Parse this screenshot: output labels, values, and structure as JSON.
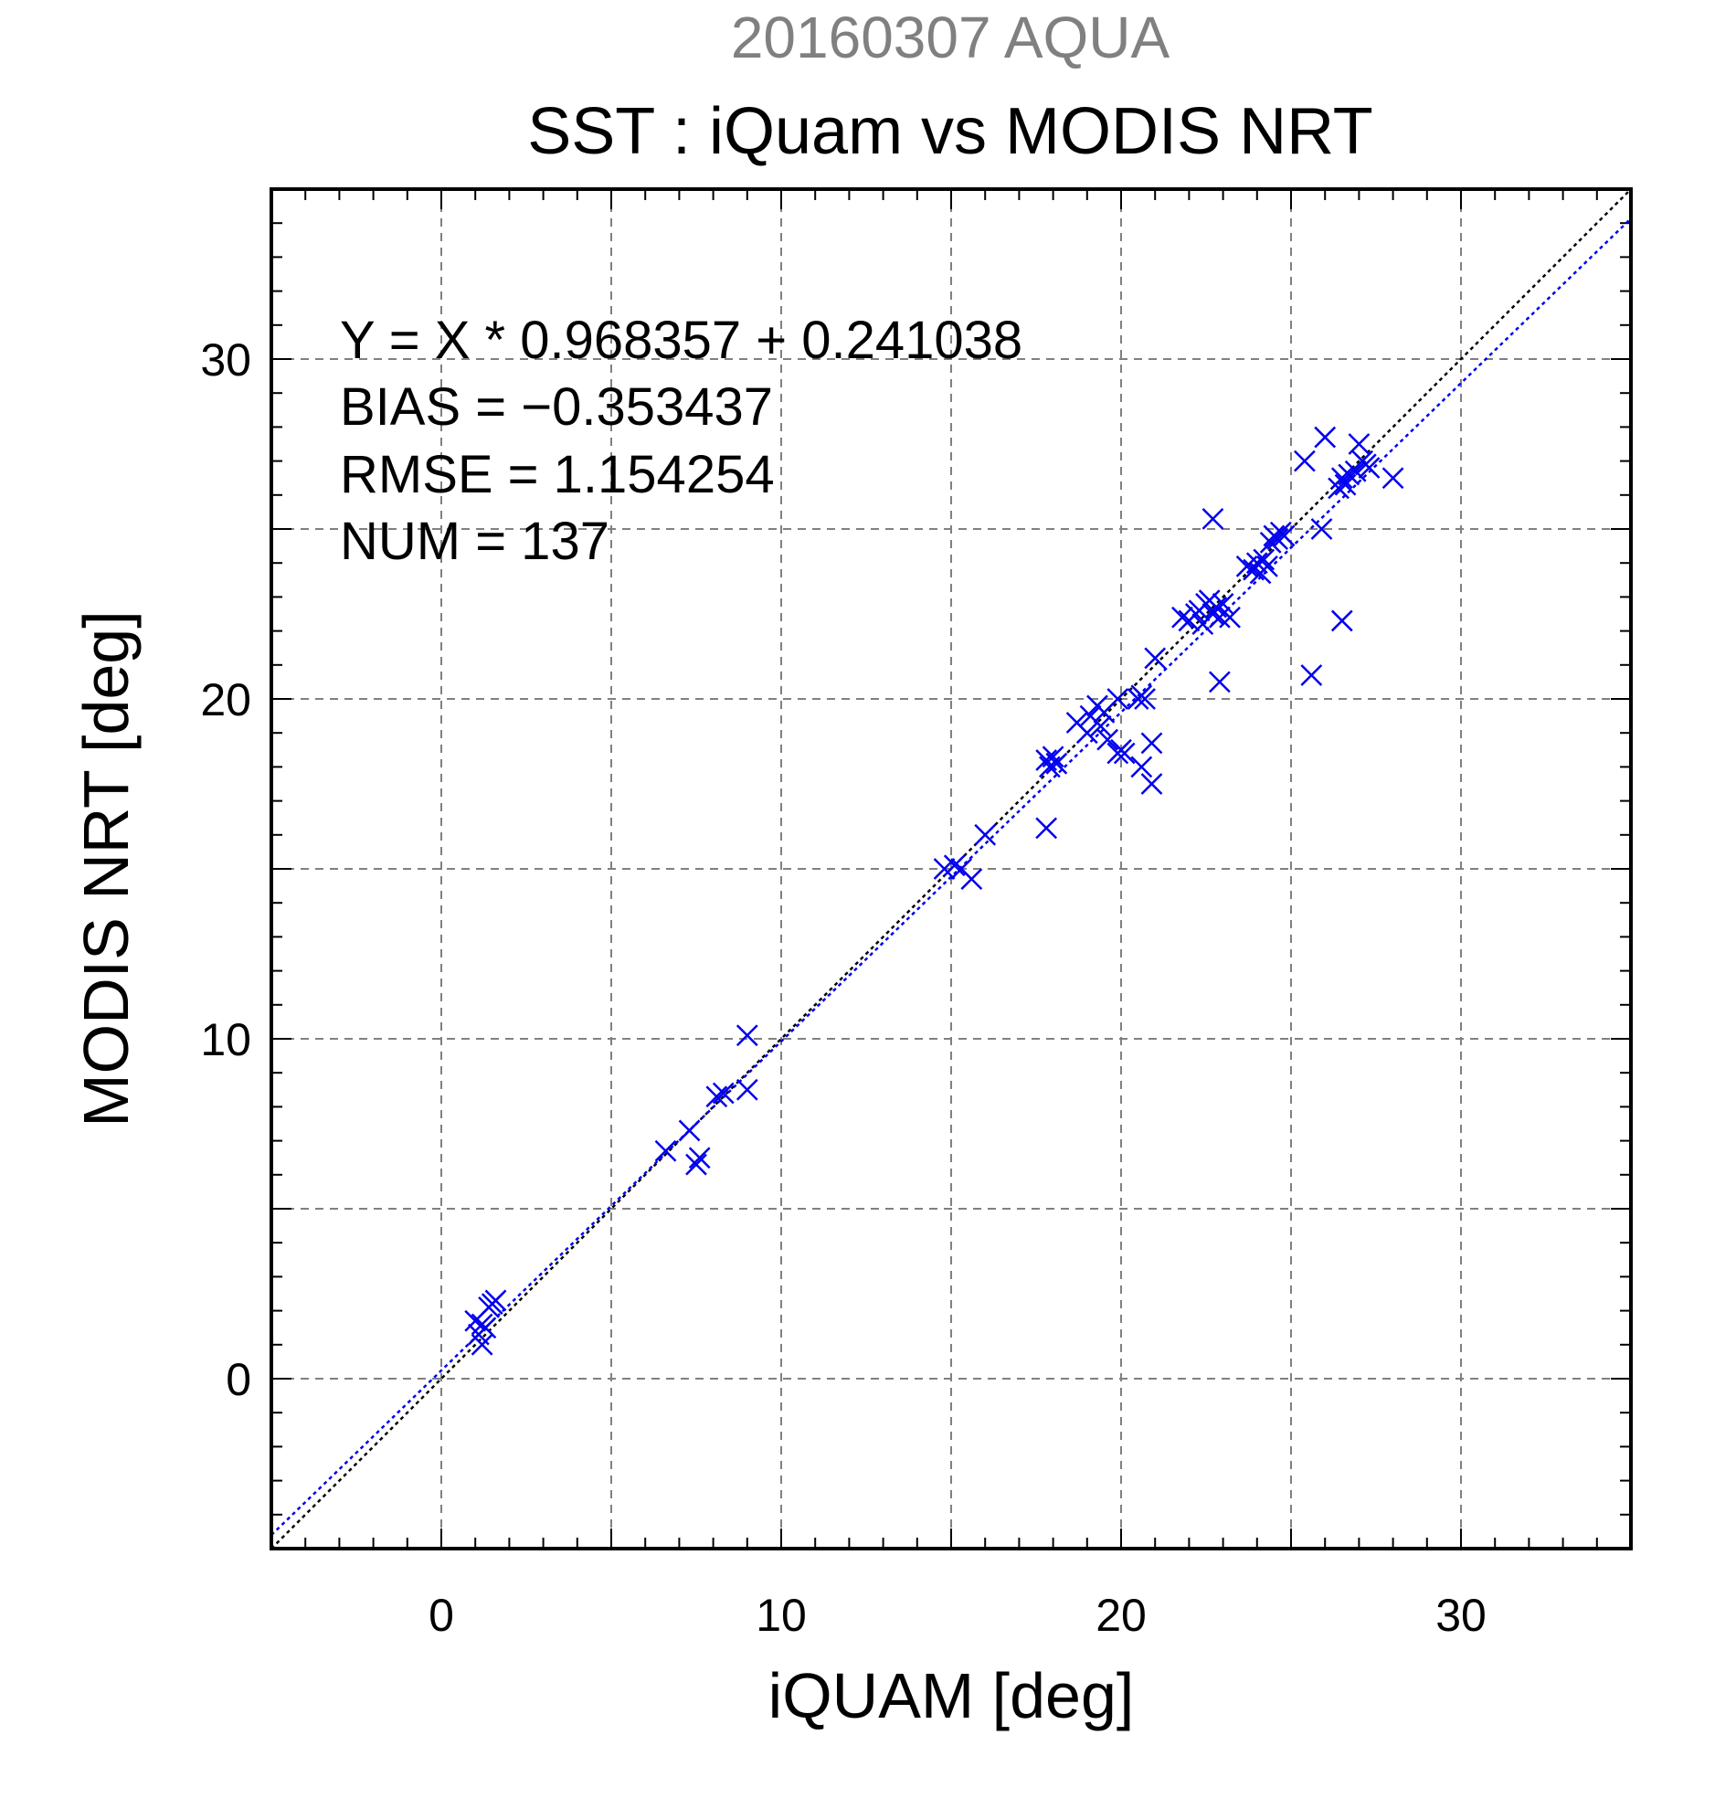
{
  "chart_data": {
    "type": "scatter",
    "title": "SST : iQuam vs MODIS NRT",
    "subtitle": "20160307 AQUA",
    "xlabel": "iQUAM [deg]",
    "ylabel": "MODIS NRT [deg]",
    "xlim": [
      -5,
      35
    ],
    "ylim": [
      -5,
      35
    ],
    "x_ticks": [
      0,
      10,
      20,
      30
    ],
    "y_ticks": [
      0,
      10,
      20,
      30
    ],
    "x_tick_labels": [
      "0",
      "10",
      "20",
      "30"
    ],
    "y_tick_labels": [
      "0",
      "10",
      "20",
      "30"
    ],
    "grid_step": 5,
    "grid": true,
    "marker": "x",
    "colors": {
      "points": "#0000ee",
      "fit_line": "#0000ee",
      "identity_line": "#000000",
      "subtitle": "#808080",
      "grid": "#808080"
    },
    "fit": {
      "slope": 0.968357,
      "intercept": 0.241038
    },
    "stats": [
      "Y = X * 0.968357 + 0.241038",
      "BIAS = −0.353437",
      "RMSE = 1.154254",
      "NUM = 137"
    ],
    "points": [
      [
        1.0,
        1.7
      ],
      [
        1.1,
        1.3
      ],
      [
        1.2,
        1.0
      ],
      [
        1.3,
        1.5
      ],
      [
        1.4,
        2.1
      ],
      [
        1.5,
        2.2
      ],
      [
        1.6,
        2.3
      ],
      [
        1.2,
        1.6
      ],
      [
        6.6,
        6.7
      ],
      [
        7.3,
        7.3
      ],
      [
        7.5,
        6.3
      ],
      [
        7.6,
        6.5
      ],
      [
        8.1,
        8.3
      ],
      [
        8.3,
        8.4
      ],
      [
        9.0,
        10.1
      ],
      [
        9.0,
        8.5
      ],
      [
        14.8,
        15.0
      ],
      [
        15.1,
        15.1
      ],
      [
        15.3,
        15.0
      ],
      [
        15.6,
        14.7
      ],
      [
        16.0,
        16.0
      ],
      [
        17.8,
        18.2
      ],
      [
        17.9,
        18.0
      ],
      [
        18.0,
        18.3
      ],
      [
        18.1,
        18.1
      ],
      [
        17.8,
        16.2
      ],
      [
        18.7,
        19.3
      ],
      [
        19.0,
        19.0
      ],
      [
        19.1,
        19.5
      ],
      [
        19.3,
        19.8
      ],
      [
        19.4,
        19.2
      ],
      [
        19.5,
        19.6
      ],
      [
        19.6,
        18.8
      ],
      [
        19.9,
        20.0
      ],
      [
        19.9,
        18.4
      ],
      [
        20.0,
        18.5
      ],
      [
        20.1,
        18.4
      ],
      [
        20.5,
        20.0
      ],
      [
        20.6,
        20.1
      ],
      [
        20.7,
        20.0
      ],
      [
        20.6,
        18.0
      ],
      [
        20.9,
        17.5
      ],
      [
        20.9,
        18.7
      ],
      [
        21.0,
        21.2
      ],
      [
        21.8,
        22.4
      ],
      [
        22.0,
        22.3
      ],
      [
        22.2,
        22.5
      ],
      [
        22.3,
        22.6
      ],
      [
        22.4,
        22.2
      ],
      [
        22.5,
        22.8
      ],
      [
        22.6,
        22.9
      ],
      [
        22.7,
        22.5
      ],
      [
        22.8,
        22.7
      ],
      [
        22.9,
        22.4
      ],
      [
        23.0,
        22.8
      ],
      [
        23.2,
        22.4
      ],
      [
        22.7,
        25.3
      ],
      [
        22.9,
        20.5
      ],
      [
        23.7,
        23.9
      ],
      [
        23.9,
        23.8
      ],
      [
        24.0,
        24.0
      ],
      [
        24.1,
        23.7
      ],
      [
        24.2,
        24.1
      ],
      [
        24.4,
        24.6
      ],
      [
        24.5,
        24.8
      ],
      [
        24.6,
        24.7
      ],
      [
        24.7,
        24.9
      ],
      [
        24.8,
        24.8
      ],
      [
        24.3,
        23.9
      ],
      [
        25.4,
        27.0
      ],
      [
        25.6,
        20.7
      ],
      [
        25.9,
        25.0
      ],
      [
        26.0,
        27.7
      ],
      [
        26.4,
        26.2
      ],
      [
        26.5,
        26.5
      ],
      [
        26.6,
        26.3
      ],
      [
        26.7,
        26.6
      ],
      [
        26.5,
        22.3
      ],
      [
        26.9,
        26.7
      ],
      [
        27.0,
        27.5
      ],
      [
        27.1,
        27.0
      ],
      [
        27.2,
        26.9
      ],
      [
        27.3,
        26.8
      ],
      [
        28.0,
        26.5
      ]
    ]
  }
}
